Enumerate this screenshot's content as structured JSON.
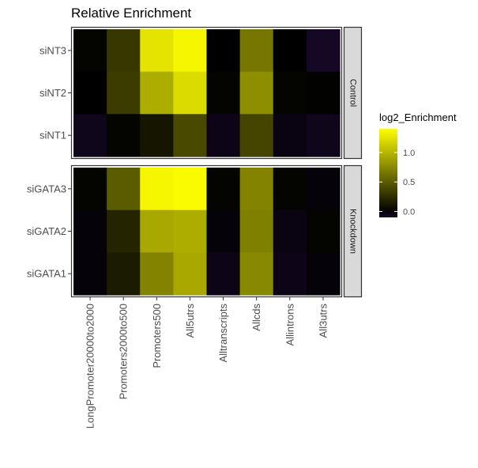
{
  "chart_data": {
    "type": "heatmap",
    "title": "Relative Enrichment",
    "x_categories": [
      "LongPromoter20000to2000",
      "Promoters2000to500",
      "Promoters500",
      "All5utrs",
      "Alltranscripts",
      "Allcds",
      "Allintrons",
      "All3utrs"
    ],
    "facets": [
      {
        "label": "Control",
        "rows": [
          "siNT3",
          "siNT2",
          "siNT1"
        ],
        "values": [
          [
            0.02,
            0.3,
            1.25,
            1.35,
            0.0,
            0.65,
            0.0,
            -0.08
          ],
          [
            0.0,
            0.33,
            0.95,
            1.2,
            0.02,
            0.78,
            0.02,
            0.01
          ],
          [
            -0.06,
            0.03,
            0.12,
            0.4,
            -0.05,
            0.38,
            -0.04,
            -0.06
          ]
        ]
      },
      {
        "label": "Knockdown",
        "rows": [
          "siGATA3",
          "siGATA2",
          "siGATA1"
        ],
        "values": [
          [
            0.03,
            0.5,
            1.35,
            1.38,
            0.02,
            0.72,
            0.02,
            -0.02
          ],
          [
            -0.02,
            0.2,
            0.92,
            0.95,
            -0.02,
            0.7,
            -0.04,
            0.02
          ],
          [
            -0.02,
            0.15,
            0.72,
            0.92,
            -0.05,
            0.75,
            -0.05,
            -0.02
          ]
        ]
      }
    ],
    "legend": {
      "title": "log2_Enrichment",
      "ticks": [
        "0.0",
        "0.5",
        "1.0"
      ],
      "tick_values": [
        0.0,
        0.5,
        1.0
      ],
      "min": -0.1,
      "max": 1.4,
      "placement": "right"
    },
    "colors": {
      "low": "#1a0a2e",
      "mid": "#000000",
      "high": "#ffff00",
      "strip_bg": "#d9d9d9",
      "panel_border": "#333333",
      "axis_text": "#4d4d4d"
    }
  }
}
